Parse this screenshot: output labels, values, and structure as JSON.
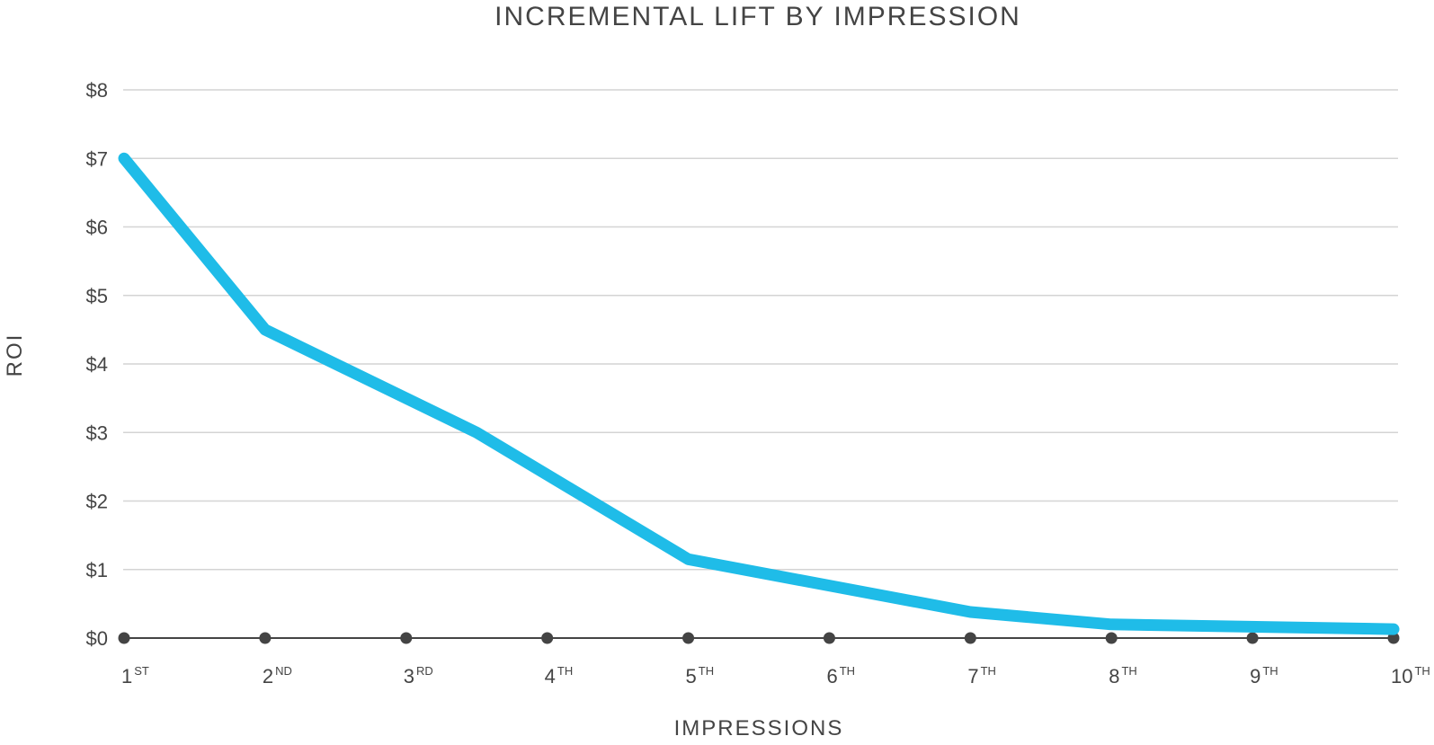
{
  "chart_data": {
    "type": "line",
    "title": "INCREMENTAL LIFT BY IMPRESSION",
    "xlabel": "IMPRESSIONS",
    "ylabel": "ROI",
    "ylim": [
      0,
      8
    ],
    "y_ticks": [
      {
        "value": 0,
        "label": "$0"
      },
      {
        "value": 1,
        "label": "$1"
      },
      {
        "value": 2,
        "label": "$2"
      },
      {
        "value": 3,
        "label": "$3"
      },
      {
        "value": 4,
        "label": "$4"
      },
      {
        "value": 5,
        "label": "$5"
      },
      {
        "value": 6,
        "label": "$6"
      },
      {
        "value": 7,
        "label": "$7"
      },
      {
        "value": 8,
        "label": "$8"
      }
    ],
    "categories": [
      {
        "num": "1",
        "sup": "ST"
      },
      {
        "num": "2",
        "sup": "ND"
      },
      {
        "num": "3",
        "sup": "RD"
      },
      {
        "num": "4",
        "sup": "TH"
      },
      {
        "num": "5",
        "sup": "TH"
      },
      {
        "num": "6",
        "sup": "TH"
      },
      {
        "num": "7",
        "sup": "TH"
      },
      {
        "num": "8",
        "sup": "TH"
      },
      {
        "num": "9",
        "sup": "TH"
      },
      {
        "num": "10",
        "sup": "TH"
      }
    ],
    "series": [
      {
        "color": "#1fbce8",
        "points": [
          {
            "x": 1,
            "y": 7.0
          },
          {
            "x": 2,
            "y": 4.5
          },
          {
            "x": 3.5,
            "y": 3.0
          },
          {
            "x": 5,
            "y": 1.15
          },
          {
            "x": 7,
            "y": 0.38
          },
          {
            "x": 8,
            "y": 0.2
          },
          {
            "x": 10,
            "y": 0.13
          }
        ]
      }
    ],
    "grid": true,
    "baseline_color": "#444444",
    "grid_color": "#d4d4d4"
  }
}
